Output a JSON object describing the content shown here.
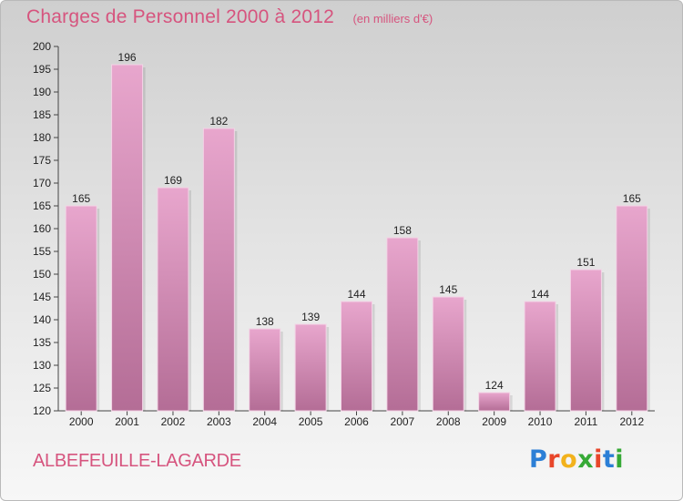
{
  "header": {
    "title": "Charges de Personnel 2000 à 2012",
    "subtitle": "(en milliers d'€)"
  },
  "footer": {
    "commune": "ALBEFEUILLE-LAGARDE",
    "logo_text": "Proxiti",
    "logo_colors": [
      "#2c7fd6",
      "#e8462a",
      "#f2b21c",
      "#36a936",
      "#e8462a",
      "#2c7fd6",
      "#36a936"
    ]
  },
  "colors": {
    "bar_top": "#e8a6cd",
    "bar_bottom": "#b46d96",
    "accent": "#d6547e"
  },
  "chart_data": {
    "type": "bar",
    "title": "Charges de Personnel 2000 à 2012",
    "subtitle": "(en milliers d'€)",
    "categories": [
      "2000",
      "2001",
      "2002",
      "2003",
      "2004",
      "2005",
      "2006",
      "2007",
      "2008",
      "2009",
      "2010",
      "2011",
      "2012"
    ],
    "values": [
      165,
      196,
      169,
      182,
      138,
      139,
      144,
      158,
      145,
      124,
      144,
      151,
      165
    ],
    "ylim": [
      120,
      200
    ],
    "yticks": [
      120,
      125,
      130,
      135,
      140,
      145,
      150,
      155,
      160,
      165,
      170,
      175,
      180,
      185,
      190,
      195,
      200
    ],
    "grid": false,
    "data_labels": true
  }
}
